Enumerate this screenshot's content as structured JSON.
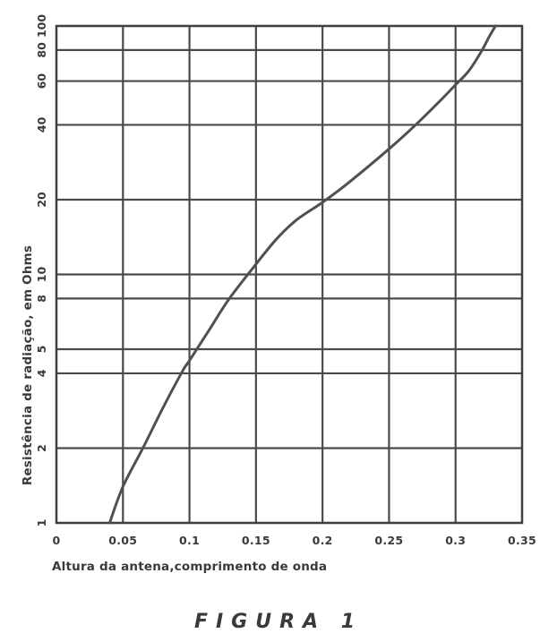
{
  "chart_data": {
    "type": "line",
    "xlabel": "Altura da antena,comprimento de onda",
    "ylabel": "Resistência de radiação, em Ohms",
    "caption": "FIGURA  1",
    "x_scale": "linear",
    "y_scale": "log",
    "xlim": [
      0,
      0.35
    ],
    "ylim": [
      1,
      100
    ],
    "grid": true,
    "x_ticks": [
      "0",
      "0.05",
      "0.1",
      "0.15",
      "0.2",
      "0.25",
      "0.3",
      "0.35"
    ],
    "y_ticks": [
      {
        "value": 1,
        "label": "1"
      },
      {
        "value": 2,
        "label": "2"
      },
      {
        "value": 4,
        "label": "4"
      },
      {
        "value": 5,
        "label": "5"
      },
      {
        "value": 8,
        "label": "8"
      },
      {
        "value": 10,
        "label": "10"
      },
      {
        "value": 20,
        "label": "20"
      },
      {
        "value": 40,
        "label": "40"
      },
      {
        "value": 60,
        "label": "60"
      },
      {
        "value": 80,
        "label": "80"
      },
      {
        "value": 100,
        "label": "100"
      }
    ],
    "series": [
      {
        "x": [
          0.04,
          0.05,
          0.065,
          0.08,
          0.095,
          0.1,
          0.115,
          0.13,
          0.15,
          0.165,
          0.18,
          0.2,
          0.22,
          0.25,
          0.27,
          0.29,
          0.3,
          0.31,
          0.32,
          0.325,
          0.33
        ],
        "y": [
          1.0,
          1.4,
          2.0,
          2.9,
          4.1,
          4.5,
          6.0,
          8.0,
          11.0,
          13.8,
          16.5,
          19.5,
          23.5,
          32.0,
          40.0,
          51.0,
          58.0,
          66.0,
          80.0,
          90.0,
          100.0
        ],
        "color": "#505050"
      }
    ]
  }
}
